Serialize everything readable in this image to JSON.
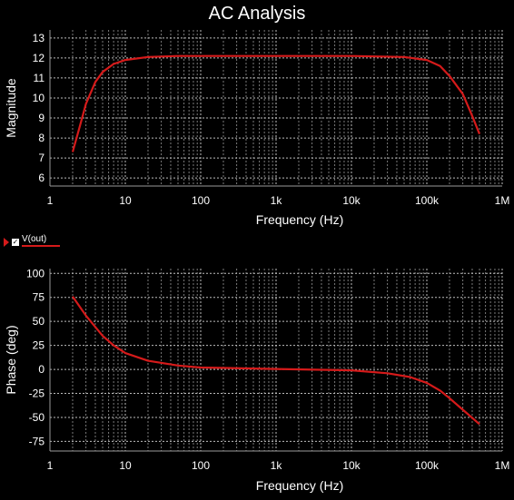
{
  "title": "AC Analysis",
  "legend": {
    "label": "V(out)",
    "checked": true,
    "color": "#d51a1a"
  },
  "chart_data": [
    {
      "type": "line",
      "xlabel": "Frequency (Hz)",
      "ylabel": "Magnitude",
      "xscale": "log",
      "xlim": [
        1,
        1000000
      ],
      "ylim": [
        5.6,
        13.4
      ],
      "xticks": [
        1,
        10,
        100,
        1000,
        10000,
        100000,
        1000000
      ],
      "xtick_labels": [
        "1",
        "10",
        "100",
        "1k",
        "10k",
        "100k",
        "1M"
      ],
      "yticks": [
        6,
        7,
        8,
        9,
        10,
        11,
        12,
        13
      ],
      "ytick_labels": [
        "6",
        "7",
        "8",
        "9",
        "10",
        "11",
        "12",
        "13"
      ],
      "grid": true,
      "series": [
        {
          "color": "#d51a1a",
          "x": [
            2,
            2.5,
            3,
            4,
            5,
            7,
            10,
            20,
            50,
            100,
            1000,
            10000,
            50000,
            100000,
            150000,
            200000,
            300000,
            400000,
            500000
          ],
          "y": [
            7.3,
            8.6,
            9.7,
            10.8,
            11.3,
            11.7,
            11.9,
            12.05,
            12.1,
            12.1,
            12.1,
            12.1,
            12.05,
            11.9,
            11.6,
            11.1,
            10.2,
            9.1,
            8.2
          ]
        }
      ]
    },
    {
      "type": "line",
      "xlabel": "Frequency (Hz)",
      "ylabel": "Phase (deg)",
      "xscale": "log",
      "xlim": [
        1,
        1000000
      ],
      "ylim": [
        -85,
        105
      ],
      "xticks": [
        1,
        10,
        100,
        1000,
        10000,
        100000,
        1000000
      ],
      "xtick_labels": [
        "1",
        "10",
        "100",
        "1k",
        "10k",
        "100k",
        "1M"
      ],
      "yticks": [
        100,
        75,
        50,
        25,
        0,
        -25,
        -50,
        -75
      ],
      "ytick_labels": [
        "100",
        "75",
        "50",
        "25",
        "0",
        "-25",
        "-50",
        "-75"
      ],
      "grid": true,
      "series": [
        {
          "color": "#d51a1a",
          "x": [
            2,
            3,
            5,
            7,
            10,
            20,
            50,
            100,
            1000,
            10000,
            30000,
            60000,
            100000,
            150000,
            200000,
            300000,
            500000
          ],
          "y": [
            76,
            56,
            35,
            25,
            17,
            9,
            4,
            2,
            0.5,
            -1,
            -4,
            -8,
            -14,
            -22,
            -30,
            -42,
            -57
          ]
        }
      ]
    }
  ]
}
